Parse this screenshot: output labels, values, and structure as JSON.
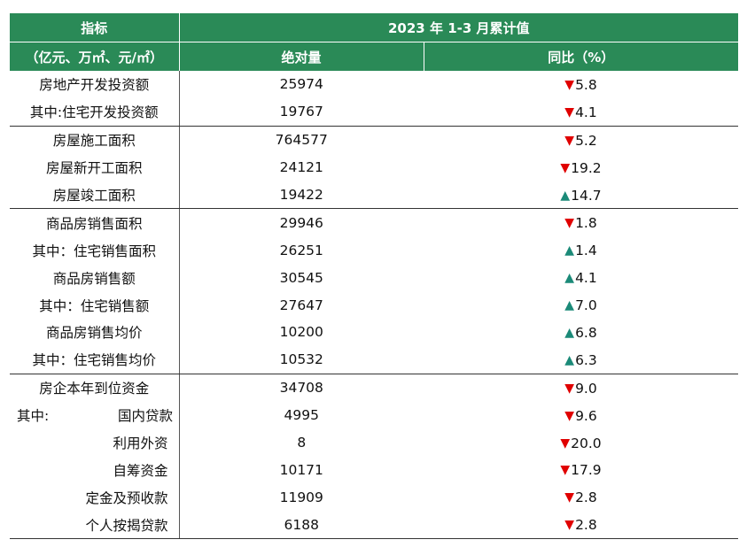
{
  "header": {
    "indicator_line1": "指标",
    "indicator_line2": "（亿元、万㎡、元/㎡）",
    "period": "2023 年 1-3 月累计值",
    "absolute": "绝对量",
    "yoy": "同比（%）"
  },
  "colors": {
    "header_bg": "#2a8a57",
    "down": "#e00000",
    "up": "#1b8a78"
  },
  "rows": [
    {
      "label": "房地产开发投资额",
      "absolute": "25974",
      "direction": "down",
      "yoy": "5.8"
    },
    {
      "label": "其中:住宅开发投资额",
      "absolute": "19767",
      "direction": "down",
      "yoy": "4.1"
    },
    {
      "label": "房屋施工面积",
      "absolute": "764577",
      "direction": "down",
      "yoy": "5.2"
    },
    {
      "label": "房屋新开工面积",
      "absolute": "24121",
      "direction": "down",
      "yoy": "19.2"
    },
    {
      "label": "房屋竣工面积",
      "absolute": "19422",
      "direction": "up",
      "yoy": "14.7"
    },
    {
      "label": "商品房销售面积",
      "absolute": "29946",
      "direction": "down",
      "yoy": "1.8"
    },
    {
      "label": "其中：住宅销售面积",
      "absolute": "26251",
      "direction": "up",
      "yoy": "1.4"
    },
    {
      "label": "商品房销售额",
      "absolute": "30545",
      "direction": "up",
      "yoy": "4.1"
    },
    {
      "label": "其中：住宅销售额",
      "absolute": "27647",
      "direction": "up",
      "yoy": "7.0"
    },
    {
      "label": "商品房销售均价",
      "absolute": "10200",
      "direction": "up",
      "yoy": "6.8"
    },
    {
      "label": "其中：住宅销售均价",
      "absolute": "10532",
      "direction": "up",
      "yoy": "6.3"
    },
    {
      "label": "房企本年到位资金",
      "absolute": "34708",
      "direction": "down",
      "yoy": "9.0"
    },
    {
      "prefix": "其中:",
      "label": "国内贷款",
      "absolute": "4995",
      "direction": "down",
      "yoy": "9.6"
    },
    {
      "label": "利用外资",
      "absolute": "8",
      "direction": "down",
      "yoy": "20.0"
    },
    {
      "label": "自筹资金",
      "absolute": "10171",
      "direction": "down",
      "yoy": "17.9"
    },
    {
      "label": "定金及预收款",
      "absolute": "11909",
      "direction": "down",
      "yoy": "2.8"
    },
    {
      "label": "个人按揭贷款",
      "absolute": "6188",
      "direction": "down",
      "yoy": "2.8"
    }
  ]
}
